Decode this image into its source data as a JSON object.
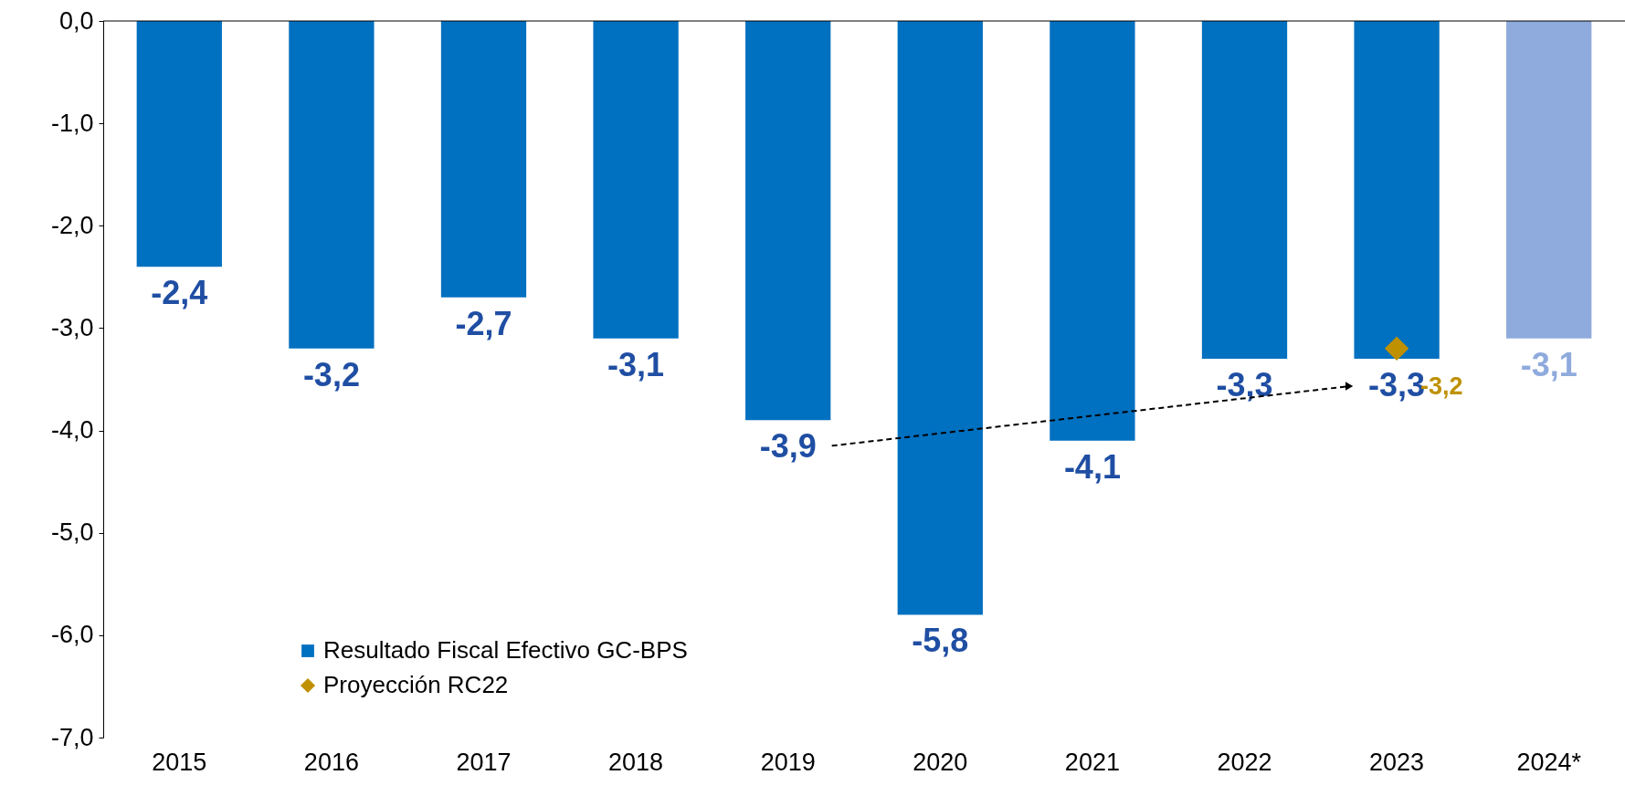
{
  "chart_data": {
    "type": "bar",
    "categories": [
      "2015",
      "2016",
      "2017",
      "2018",
      "2019",
      "2020",
      "2021",
      "2022",
      "2023",
      "2024*"
    ],
    "series": [
      {
        "name": "Resultado Fiscal Efectivo GC-BPS",
        "color": "#0070c0",
        "colors": [
          "#0070c0",
          "#0070c0",
          "#0070c0",
          "#0070c0",
          "#0070c0",
          "#0070c0",
          "#0070c0",
          "#0070c0",
          "#0070c0",
          "#8faadc"
        ],
        "values": [
          -2.4,
          -3.2,
          -2.7,
          -3.1,
          -3.9,
          -5.8,
          -4.1,
          -3.3,
          -3.3,
          -3.1
        ],
        "value_labels": [
          "-2,4",
          "-3,2",
          "-2,7",
          "-3,1",
          "-3,9",
          "-5,8",
          "-4,1",
          "-3,3",
          "-3,3",
          "-3,1"
        ]
      },
      {
        "name": "Proyección RC22",
        "type": "scatter",
        "marker": "diamond",
        "color": "#bf9000",
        "values": [
          null,
          null,
          null,
          null,
          null,
          null,
          null,
          null,
          -3.2,
          null
        ],
        "value_labels": [
          null,
          null,
          null,
          null,
          null,
          null,
          null,
          null,
          "-3,2",
          null
        ]
      }
    ],
    "ylim": [
      -7,
      0
    ],
    "yticks": [
      {
        "value": -7,
        "label": "-7,0"
      },
      {
        "value": -6,
        "label": "-6,0"
      },
      {
        "value": -5,
        "label": "-5,0"
      },
      {
        "value": -4,
        "label": "-4,0"
      },
      {
        "value": -3,
        "label": "-3,0"
      },
      {
        "value": -2,
        "label": "-2,0"
      },
      {
        "value": -1,
        "label": "-1,0"
      },
      {
        "value": 0,
        "label": "0,0"
      }
    ],
    "grid": false,
    "legend": "bottom left"
  }
}
